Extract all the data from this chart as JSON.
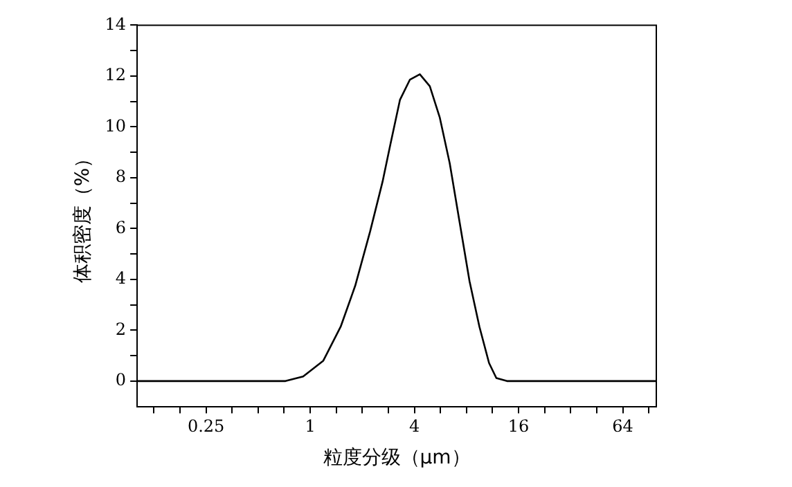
{
  "chart_data": {
    "type": "line",
    "xlabel": "粒度分级（μm）",
    "ylabel": "体积密度（%）",
    "log": "x",
    "xlim": [
      0.1,
      100
    ],
    "xticks": [
      {
        "value": 0.125,
        "label": null
      },
      {
        "value": 0.177,
        "label": null
      },
      0.25,
      {
        "value": 0.354,
        "label": null
      },
      {
        "value": 0.5,
        "label": null
      },
      {
        "value": 0.707,
        "label": null
      },
      1,
      {
        "value": 1.414,
        "label": null
      },
      {
        "value": 2,
        "label": null
      },
      {
        "value": 2.83,
        "label": null
      },
      4,
      {
        "value": 5.66,
        "label": null
      },
      {
        "value": 8,
        "label": null
      },
      {
        "value": 11.3,
        "label": null
      },
      16,
      {
        "value": 22.6,
        "label": null
      },
      {
        "value": 32,
        "label": null
      },
      {
        "value": 45.3,
        "label": null
      },
      64,
      {
        "value": 90.5,
        "label": null
      }
    ],
    "ylim": [
      -1,
      14
    ],
    "yticks": [
      0,
      {
        "value": 1,
        "label": null
      },
      2,
      {
        "value": 3,
        "label": null
      },
      4,
      {
        "value": 5,
        "label": null
      },
      6,
      {
        "value": 7,
        "label": null
      },
      8,
      {
        "value": 9,
        "label": null
      },
      10,
      {
        "value": 11,
        "label": null
      },
      12,
      {
        "value": 13,
        "label": null
      },
      14
    ],
    "grid": false,
    "legend": false,
    "marker": "none",
    "line_style": "solid",
    "series": [
      {
        "color": "#000000",
        "x": [
          0.1,
          0.72,
          0.91,
          1.19,
          1.5,
          1.82,
          2.22,
          2.62,
          2.9,
          3.3,
          3.77,
          4.3,
          4.91,
          5.61,
          6.4,
          7.3,
          8.33,
          9.5,
          10.8,
          11.9,
          13.7,
          100
        ],
        "values": [
          0,
          0,
          0.18,
          0.8,
          2.14,
          3.75,
          5.89,
          7.85,
          9.28,
          11.06,
          11.86,
          12.07,
          11.6,
          10.36,
          8.57,
          6.25,
          3.93,
          2.14,
          0.71,
          0.12,
          0,
          0
        ]
      }
    ]
  }
}
